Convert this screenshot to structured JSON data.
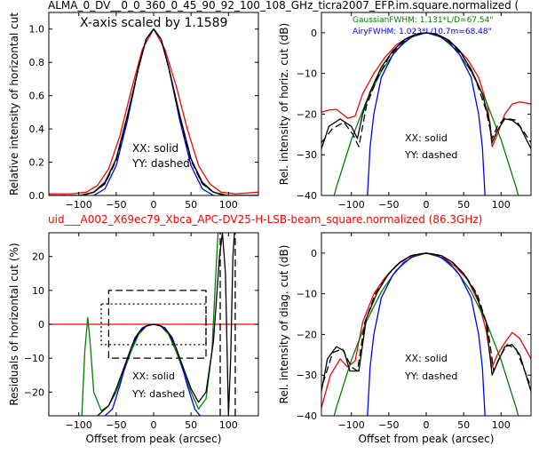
{
  "figure": {
    "top_title": "ALMA_0_DV__0_0_360_0_45_90_92_100_108_GHz_ticra2007_EFP.im.square.normalized (",
    "middle_title": "uid___A002_X69ec79_Xbca_APC-DV25-H-LSB-beam_square.normalized (86.3GHz)",
    "middle_title_color": "#ff0000"
  },
  "colors": {
    "red": "#ff0000",
    "green": "#008000",
    "blue": "#0000ff",
    "black": "#000000"
  },
  "chart_data": [
    {
      "id": "top-left",
      "type": "line",
      "xlabel": "",
      "ylabel": "Relative intensity of horizontal cut",
      "xlim": [
        -140,
        140
      ],
      "ylim": [
        0,
        1.1
      ],
      "xticks": [
        -100,
        -50,
        0,
        50,
        100
      ],
      "yticks": [
        0.0,
        0.2,
        0.4,
        0.6,
        0.8,
        1.0
      ],
      "xtick_labels": [
        "−100",
        "−50",
        "0",
        "50",
        "100"
      ],
      "ytick_labels": [
        "0.0",
        "0.2",
        "0.4",
        "0.6",
        "0.8",
        "1.0"
      ],
      "annotations": [
        "X-axis scaled by 1.1589",
        "XX: solid",
        "YY: dashed"
      ],
      "series": [
        {
          "color": "#ff0000",
          "style": "solid",
          "x": [
            -140,
            -110,
            -90,
            -75,
            -60,
            -45,
            -30,
            -15,
            0,
            15,
            30,
            45,
            60,
            75,
            90,
            110,
            140
          ],
          "y": [
            0.01,
            0.01,
            0.02,
            0.06,
            0.16,
            0.36,
            0.63,
            0.88,
            1.0,
            0.88,
            0.66,
            0.4,
            0.18,
            0.07,
            0.02,
            0.01,
            0.02
          ]
        },
        {
          "color": "#008000",
          "style": "solid",
          "x": [
            -140,
            -100,
            -80,
            -65,
            -50,
            -35,
            -20,
            -10,
            0,
            10,
            20,
            35,
            50,
            65,
            80,
            100,
            140
          ],
          "y": [
            0.0,
            0.0,
            0.02,
            0.07,
            0.22,
            0.48,
            0.77,
            0.94,
            1.0,
            0.94,
            0.77,
            0.48,
            0.22,
            0.07,
            0.02,
            0.0,
            0.0
          ]
        },
        {
          "color": "#0000ff",
          "style": "solid",
          "x": [
            -80,
            -65,
            -50,
            -35,
            -20,
            -10,
            0,
            10,
            20,
            35,
            50,
            65,
            80
          ],
          "y": [
            0.0,
            0.04,
            0.18,
            0.45,
            0.77,
            0.94,
            1.0,
            0.94,
            0.77,
            0.45,
            0.18,
            0.04,
            0.0
          ]
        },
        {
          "color": "#000000",
          "style": "solid",
          "x": [
            -140,
            -95,
            -80,
            -65,
            -50,
            -35,
            -20,
            -10,
            0,
            10,
            20,
            35,
            50,
            65,
            80,
            95,
            140
          ],
          "y": [
            0.0,
            0.0,
            0.02,
            0.08,
            0.22,
            0.48,
            0.77,
            0.94,
            1.0,
            0.94,
            0.77,
            0.48,
            0.22,
            0.08,
            0.02,
            0.0,
            0.0
          ]
        },
        {
          "color": "#000000",
          "style": "dashed",
          "x": [
            -140,
            -95,
            -80,
            -65,
            -50,
            -35,
            -20,
            -10,
            0,
            10,
            20,
            35,
            50,
            65,
            80,
            95,
            140
          ],
          "y": [
            0.0,
            0.0,
            0.02,
            0.07,
            0.21,
            0.47,
            0.77,
            0.94,
            1.0,
            0.94,
            0.77,
            0.47,
            0.21,
            0.07,
            0.02,
            0.0,
            0.0
          ]
        }
      ]
    },
    {
      "id": "top-right",
      "type": "line",
      "xlabel": "",
      "ylabel": "Rel. intensity of horiz. cut (dB)",
      "xlim": [
        -140,
        140
      ],
      "ylim": [
        -40,
        5
      ],
      "xticks": [
        -100,
        -50,
        0,
        50,
        100
      ],
      "yticks": [
        0,
        -10,
        -20,
        -30,
        -40
      ],
      "xtick_labels": [
        "−100",
        "−50",
        "0",
        "50",
        "100"
      ],
      "ytick_labels": [
        "0",
        "−10",
        "−20",
        "−30",
        "−40"
      ],
      "annotations": [
        "GaussianFWHM: 1.131*L/D=67.54\"",
        "AiryFWHM: 1.023*L/10.7m=68.48\"",
        "XX: solid",
        "YY: dashed"
      ],
      "annotation_colors": [
        "#008000",
        "#0000ff",
        "#000000",
        "#000000"
      ],
      "series": [
        {
          "color": "#ff0000",
          "style": "solid",
          "x": [
            -140,
            -130,
            -120,
            -105,
            -95,
            -85,
            -70,
            -55,
            -40,
            -25,
            -10,
            0,
            10,
            25,
            40,
            55,
            70,
            82,
            88,
            95,
            105,
            115,
            125,
            140
          ],
          "y": [
            -19.5,
            -19,
            -18.8,
            -21,
            -20.5,
            -15,
            -10,
            -6,
            -3,
            -1.2,
            -0.2,
            0,
            -0.2,
            -1.4,
            -3.5,
            -6.5,
            -11,
            -18,
            -28,
            -25,
            -20,
            -17.5,
            -17,
            -17.5
          ]
        },
        {
          "color": "#008000",
          "style": "solid",
          "x": [
            -140,
            -120,
            -100,
            -80,
            -60,
            -40,
            -20,
            0,
            20,
            40,
            60,
            80,
            100,
            120,
            140
          ],
          "y": [
            -51.6,
            -37.9,
            -26.3,
            -16.8,
            -9.5,
            -4.2,
            -1.1,
            0,
            -1.1,
            -4.2,
            -9.5,
            -16.8,
            -26.3,
            -37.9,
            -51.6
          ]
        },
        {
          "color": "#0000ff",
          "style": "solid",
          "x": [
            -80,
            -78,
            -75,
            -70,
            -60,
            -45,
            -30,
            -15,
            0,
            15,
            30,
            45,
            60,
            70,
            75,
            78,
            80
          ],
          "y": [
            -45,
            -38,
            -28,
            -20,
            -11,
            -5.5,
            -2.3,
            -0.6,
            0,
            -0.6,
            -2.3,
            -5.5,
            -11,
            -20,
            -28,
            -38,
            -45
          ]
        },
        {
          "color": "#000000",
          "style": "solid",
          "x": [
            -140,
            -130,
            -115,
            -100,
            -92,
            -85,
            -75,
            -60,
            -45,
            -30,
            -15,
            0,
            15,
            30,
            45,
            60,
            75,
            85,
            88,
            95,
            105,
            115,
            125,
            140
          ],
          "y": [
            -28.5,
            -23,
            -21.2,
            -23,
            -26,
            -20,
            -14.5,
            -8.5,
            -4.5,
            -1.8,
            -0.4,
            0,
            -0.4,
            -1.8,
            -4.5,
            -9,
            -15,
            -22,
            -27,
            -24,
            -21.2,
            -21.5,
            -23,
            -28.5
          ]
        },
        {
          "color": "#000000",
          "style": "dashed",
          "x": [
            -140,
            -125,
            -110,
            -98,
            -90,
            -80,
            -65,
            -50,
            -35,
            -20,
            -10,
            0,
            10,
            20,
            35,
            50,
            65,
            80,
            88,
            95,
            105,
            120,
            140
          ],
          "y": [
            -27,
            -23.5,
            -22,
            -25,
            -28,
            -18,
            -11,
            -6,
            -2.8,
            -0.9,
            -0.2,
            0,
            -0.2,
            -0.9,
            -2.8,
            -6,
            -11,
            -19,
            -26,
            -23,
            -21,
            -21.5,
            -27
          ]
        }
      ]
    },
    {
      "id": "bottom-left",
      "type": "line",
      "xlabel": "Offset from peak (arcsec)",
      "ylabel": "Residuals of horizontal cut (%)",
      "xlim": [
        -140,
        140
      ],
      "ylim": [
        -27,
        27
      ],
      "xticks": [
        -100,
        -50,
        0,
        50,
        100
      ],
      "yticks": [
        20,
        10,
        0,
        -10,
        -20
      ],
      "xtick_labels": [
        "−100",
        "−50",
        "0",
        "50",
        "100"
      ],
      "ytick_labels": [
        "20",
        "10",
        "0",
        "−10",
        "−20"
      ],
      "annotations": [
        "XX: solid",
        "YY: dashed"
      ],
      "series": [
        {
          "color": "#ff0000",
          "style": "solid",
          "x": [
            -140,
            140
          ],
          "y": [
            0,
            0
          ]
        },
        {
          "color": "#008000",
          "style": "solid",
          "x": [
            -96,
            -92,
            -88,
            -85,
            -80,
            -70,
            -60,
            -50,
            -40,
            -30,
            -20,
            -10,
            0,
            10,
            20,
            30,
            40,
            50,
            60,
            70,
            78,
            82,
            86,
            90,
            92
          ],
          "y": [
            -27,
            -8,
            2,
            -5,
            -20,
            -25.5,
            -24,
            -20,
            -14,
            -8,
            -3,
            -0.6,
            0,
            -0.6,
            -3,
            -8,
            -14,
            -20,
            -25,
            -22,
            -8,
            10,
            27,
            27,
            27
          ]
        },
        {
          "color": "#0000ff",
          "style": "solid",
          "x": [
            -65,
            -55,
            -45,
            -35,
            -25,
            -15,
            -5,
            0,
            5,
            15,
            25,
            35,
            45,
            55,
            62
          ],
          "y": [
            -27,
            -25,
            -18,
            -10,
            -4,
            -1,
            -0.1,
            0,
            -0.1,
            -1,
            -4,
            -10,
            -18,
            -25,
            -27
          ]
        },
        {
          "color": "#000000",
          "style": "solid",
          "x": [
            -75,
            -60,
            -50,
            -40,
            -30,
            -20,
            -10,
            0,
            10,
            20,
            30,
            40,
            50,
            60,
            70,
            80,
            88,
            92,
            96,
            100,
            103,
            106,
            108
          ],
          "y": [
            -27,
            -24,
            -19,
            -13,
            -7,
            -2.5,
            -0.5,
            0,
            -0.5,
            -2.5,
            -7,
            -13,
            -19,
            -23,
            -20,
            -5,
            20,
            27,
            15,
            -27,
            -10,
            20,
            27
          ]
        },
        {
          "color": "#000000",
          "style": "dashed",
          "x": [
            -140,
            -100,
            -60,
            -60,
            70,
            70,
            -60
          ],
          "y": [
            null,
            null,
            -10,
            10,
            10,
            -10,
            -10
          ]
        },
        {
          "color": "#000000",
          "style": "dotted",
          "x": [
            -70,
            -70,
            70,
            70,
            -70
          ],
          "y": [
            6,
            -6,
            -6,
            6,
            6
          ]
        },
        {
          "color": "#000000",
          "style": "dashed",
          "x": [
            89,
            89
          ],
          "y": [
            -27,
            27
          ]
        },
        {
          "color": "#000000",
          "style": "dashed",
          "x": [
            109,
            109
          ],
          "y": [
            -27,
            27
          ]
        }
      ]
    },
    {
      "id": "bottom-right",
      "type": "line",
      "xlabel": "Offset from peak (arcsec)",
      "ylabel": "Rel. intensity of diag. cut (dB)",
      "xlim": [
        -140,
        140
      ],
      "ylim": [
        -40,
        5
      ],
      "xticks": [
        -100,
        -50,
        0,
        50,
        100
      ],
      "yticks": [
        0,
        -10,
        -20,
        -30,
        -40
      ],
      "xtick_labels": [
        "−100",
        "−50",
        "0",
        "50",
        "100"
      ],
      "ytick_labels": [
        "0",
        "−10",
        "−20",
        "−30",
        "−40"
      ],
      "annotations": [
        "XX: solid",
        "YY: dashed"
      ],
      "series": [
        {
          "color": "#ff0000",
          "style": "solid",
          "x": [
            -140,
            -128,
            -115,
            -105,
            -95,
            -85,
            -70,
            -55,
            -40,
            -25,
            -10,
            0,
            10,
            25,
            40,
            55,
            70,
            80,
            88,
            95,
            105,
            115,
            125,
            140
          ],
          "y": [
            -38,
            -30,
            -26,
            -28,
            -26.5,
            -17,
            -10,
            -6,
            -3,
            -1.2,
            -0.2,
            0,
            -0.2,
            -1.4,
            -3.5,
            -6.5,
            -12,
            -19,
            -28,
            -25,
            -22,
            -19.5,
            -21,
            -26
          ]
        },
        {
          "color": "#008000",
          "style": "solid",
          "x": [
            -140,
            -120,
            -100,
            -80,
            -60,
            -40,
            -20,
            0,
            20,
            40,
            60,
            80,
            100,
            120,
            140
          ],
          "y": [
            -51.6,
            -37.9,
            -26.3,
            -16.8,
            -9.5,
            -4.2,
            -1.1,
            0,
            -1.1,
            -4.2,
            -9.5,
            -16.8,
            -26.3,
            -37.9,
            -51.6
          ]
        },
        {
          "color": "#0000ff",
          "style": "solid",
          "x": [
            -80,
            -78,
            -75,
            -70,
            -60,
            -45,
            -30,
            -15,
            0,
            15,
            30,
            45,
            60,
            70,
            75,
            78,
            80
          ],
          "y": [
            -45,
            -38,
            -28,
            -20,
            -11,
            -5.5,
            -2.3,
            -0.6,
            0,
            -0.6,
            -2.3,
            -5.5,
            -11,
            -20,
            -28,
            -38,
            -45
          ]
        },
        {
          "color": "#000000",
          "style": "solid",
          "x": [
            -140,
            -132,
            -120,
            -110,
            -102,
            -90,
            -80,
            -65,
            -50,
            -35,
            -20,
            0,
            20,
            35,
            50,
            65,
            80,
            88,
            95,
            105,
            115,
            125,
            140
          ],
          "y": [
            -34,
            -26,
            -23,
            -24,
            -29,
            -29,
            -16,
            -9.5,
            -5,
            -2.2,
            -0.6,
            0,
            -0.6,
            -2.2,
            -5,
            -9.5,
            -17,
            -30,
            -27,
            -23,
            -22.5,
            -25,
            -34
          ]
        },
        {
          "color": "#000000",
          "style": "dashed",
          "x": [
            -138,
            -125,
            -112,
            -100,
            -92,
            -82,
            -68,
            -52,
            -36,
            -20,
            0,
            20,
            36,
            52,
            68,
            82,
            90,
            97,
            108,
            120,
            138
          ],
          "y": [
            -32,
            -24.5,
            -23.5,
            -28,
            -29,
            -17,
            -10,
            -5.5,
            -2.4,
            -0.6,
            0,
            -0.6,
            -2.4,
            -5.5,
            -10,
            -18,
            -29,
            -26,
            -22.5,
            -23.5,
            -32
          ]
        }
      ]
    }
  ]
}
